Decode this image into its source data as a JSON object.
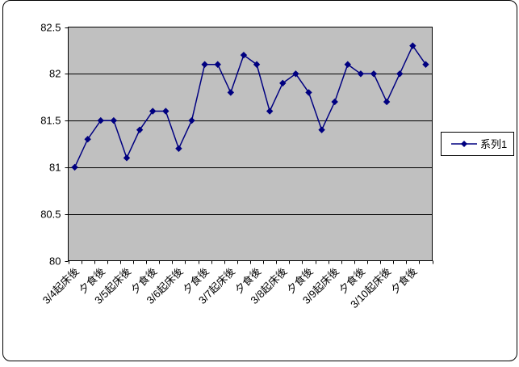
{
  "chart_data": {
    "type": "line",
    "title": "",
    "n_categories": 28,
    "series": [
      {
        "name": "系列1",
        "values": [
          81.0,
          81.3,
          81.5,
          81.5,
          81.1,
          81.4,
          81.6,
          81.6,
          81.2,
          81.5,
          82.1,
          82.1,
          81.8,
          82.2,
          82.1,
          81.6,
          81.9,
          82.0,
          81.8,
          81.4,
          81.7,
          82.1,
          82.0,
          82.0,
          81.7,
          82.0,
          82.3,
          82.1
        ]
      }
    ],
    "x_labels": [
      "3/4起床後",
      "夕食後",
      "3/5起床後",
      "夕食後",
      "3/6起床後",
      "夕食後",
      "3/7起床後",
      "夕食後",
      "3/8起床後",
      "夕食後",
      "3/9起床後",
      "夕食後",
      "3/10起床後",
      "夕食後"
    ],
    "x_label_every": 2,
    "x_labels_rotation_deg": 45,
    "y_ticks": [
      80,
      80.5,
      81,
      81.5,
      82,
      82.5
    ],
    "y_tick_labels": [
      "80",
      "80.5",
      "81",
      "81.5",
      "82",
      "82.5"
    ],
    "ylim": [
      80,
      82.5
    ],
    "grid": true,
    "legend_position": "right",
    "xlabel": "",
    "ylabel": "",
    "colors": {
      "series": "#000080",
      "plot_bg": "#c0c0c0",
      "grid": "#000000",
      "axis_text": "#000000",
      "chart_bg": "#ffffff"
    }
  },
  "legend": {
    "series_label": "系列1"
  }
}
